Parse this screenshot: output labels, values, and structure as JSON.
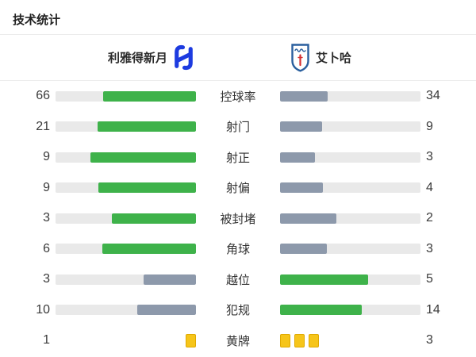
{
  "title": "技术统计",
  "header": {
    "home_team": {
      "name": "利雅得新月",
      "crest_icon": "alhilal-crest-icon",
      "brand_color": "#1d3be0"
    },
    "away_team": {
      "name": "艾卜哈",
      "crest_icon": "abha-crest-icon",
      "brand_color": "#2a5f9e",
      "accent_color": "#d63031"
    }
  },
  "colors": {
    "leading": "#3eb24a",
    "trailing": "#8d99ab",
    "track": "#e9e9e9",
    "card": "#f6c51a",
    "card_border": "#dfa900"
  },
  "stats": [
    {
      "label": "控球率",
      "home": 66,
      "away": 34
    },
    {
      "label": "射门",
      "home": 21,
      "away": 9
    },
    {
      "label": "射正",
      "home": 9,
      "away": 3
    },
    {
      "label": "射偏",
      "home": 9,
      "away": 4
    },
    {
      "label": "被封堵",
      "home": 3,
      "away": 2
    },
    {
      "label": "角球",
      "home": 6,
      "away": 3
    },
    {
      "label": "越位",
      "home": 3,
      "away": 5
    },
    {
      "label": "犯规",
      "home": 10,
      "away": 14
    },
    {
      "label": "黄牌",
      "home": 1,
      "away": 3,
      "type": "cards"
    }
  ]
}
